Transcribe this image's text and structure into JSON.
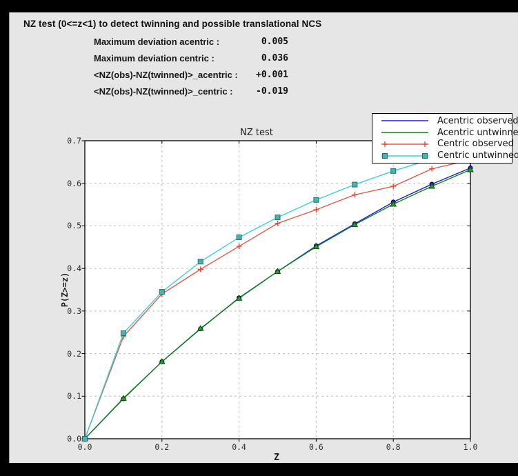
{
  "header": {
    "title": "NZ test (0<=z<1) to detect twinning and possible translational NCS"
  },
  "stats": [
    {
      "label": "Maximum deviation acentric :",
      "value": "0.005"
    },
    {
      "label": "Maximum deviation centric :",
      "value": "0.036"
    },
    {
      "label": "<NZ(obs)-NZ(twinned)>_acentric :",
      "value": "+0.001"
    },
    {
      "label": "<NZ(obs)-NZ(twinned)>_centric :",
      "value": "-0.019"
    }
  ],
  "chart_data": {
    "type": "line",
    "title": "NZ test",
    "xlabel": "Z",
    "ylabel": "P(Z>=z)",
    "xlim": [
      0.0,
      1.0
    ],
    "ylim": [
      0.0,
      0.7
    ],
    "grid": true,
    "legend_position": "upper right",
    "x_ticks": [
      {
        "label": "0.0",
        "v": 0.0
      },
      {
        "label": "0.2",
        "v": 0.2
      },
      {
        "label": "0.4",
        "v": 0.4
      },
      {
        "label": "0.6",
        "v": 0.6
      },
      {
        "label": "0.8",
        "v": 0.8
      },
      {
        "label": "1.0",
        "v": 1.0
      }
    ],
    "y_ticks": [
      {
        "label": "0.0",
        "v": 0.0
      },
      {
        "label": "0.1",
        "v": 0.1
      },
      {
        "label": "0.2",
        "v": 0.2
      },
      {
        "label": "0.3",
        "v": 0.3
      },
      {
        "label": "0.4",
        "v": 0.4
      },
      {
        "label": "0.5",
        "v": 0.5
      },
      {
        "label": "0.6",
        "v": 0.6
      },
      {
        "label": "0.7",
        "v": 0.7
      }
    ],
    "x": [
      0.0,
      0.1,
      0.2,
      0.3,
      0.4,
      0.5,
      0.6,
      0.7,
      0.8,
      0.9,
      1.0
    ],
    "series": [
      {
        "name": "Acentric observed",
        "color": "#1f1fd6",
        "marker": "circle",
        "marker_fill": "#2828c8",
        "marker_edge": "#00004d",
        "legend_markers": "none",
        "values": [
          0.0,
          0.094,
          0.181,
          0.258,
          0.331,
          0.393,
          0.453,
          0.505,
          0.556,
          0.598,
          0.636
        ]
      },
      {
        "name": "Acentric untwinned",
        "color": "#0f870f",
        "marker": "triangle",
        "marker_fill": "#2f9a2f",
        "marker_edge": "#0c4f0c",
        "legend_markers": "none",
        "values": [
          0.0,
          0.095,
          0.181,
          0.259,
          0.33,
          0.393,
          0.451,
          0.503,
          0.551,
          0.593,
          0.632
        ]
      },
      {
        "name": "Centric observed",
        "color": "#e85948",
        "marker": "plus",
        "marker_fill": "#e8432f",
        "marker_edge": "#e8432f",
        "legend_markers": "ends",
        "values": [
          0.0,
          0.24,
          0.34,
          0.398,
          0.452,
          0.506,
          0.538,
          0.573,
          0.593,
          0.634,
          0.655
        ]
      },
      {
        "name": "Centric untwinned",
        "color": "#3ad2d2",
        "marker": "square",
        "marker_fill": "#4fb0b0",
        "marker_edge": "#1f7373",
        "legend_markers": "ends",
        "values": [
          0.0,
          0.248,
          0.345,
          0.416,
          0.473,
          0.52,
          0.561,
          0.597,
          0.629,
          0.657,
          0.683
        ]
      }
    ],
    "colors": {
      "plot_bg": "#ffffff",
      "figure_bg": "#e6e6e6",
      "grid": "#bfbfbf",
      "axis": "#000000"
    }
  }
}
